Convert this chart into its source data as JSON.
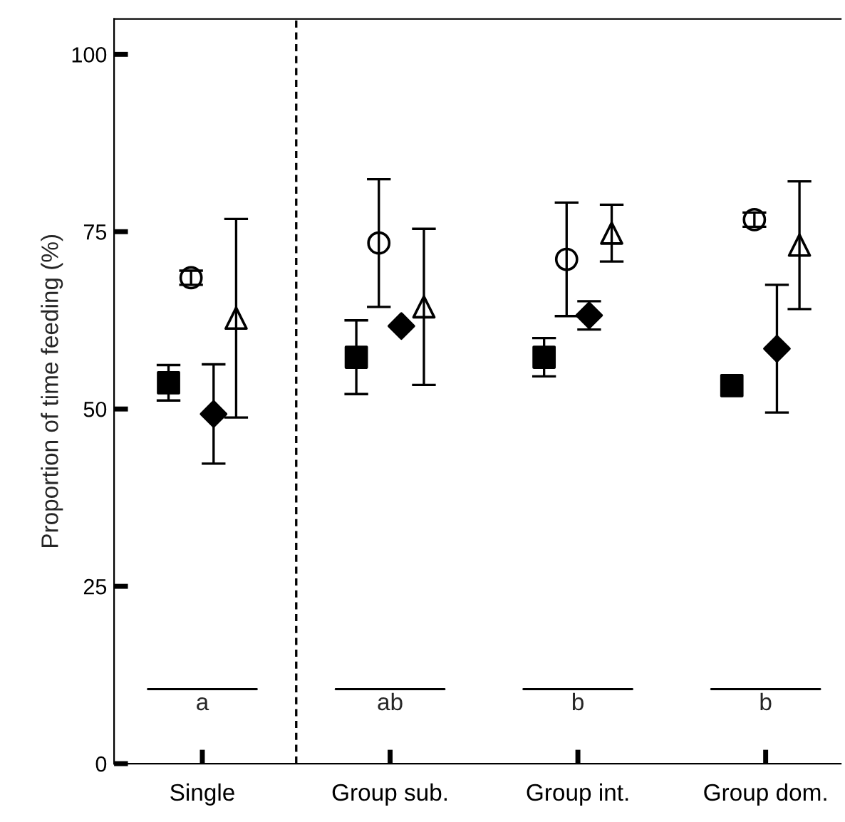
{
  "chart_data": {
    "type": "scatter",
    "ylabel": "Proportion of time feeding (%)",
    "categories": [
      "Single",
      "Group sub.",
      "Group int.",
      "Group dom."
    ],
    "series": [
      {
        "color": "#000000",
        "marker": "square",
        "values": [
          53.7,
          57.3,
          57.3,
          53.3
        ],
        "errors": [
          2.5,
          5.2,
          2.7,
          null
        ]
      },
      {
        "color": "#000000",
        "marker": "circle",
        "values": [
          68.5,
          73.4,
          71.1,
          76.7
        ],
        "errors": [
          1,
          9,
          8,
          1
        ]
      },
      {
        "color": "#000000",
        "marker": "diamond",
        "values": [
          49.3,
          61.7,
          63.2,
          58.5
        ],
        "errors": [
          7,
          null,
          2,
          9
        ]
      },
      {
        "color": "#000000",
        "marker": "triangle",
        "values": [
          62.8,
          64.4,
          74.8,
          73.1
        ],
        "errors": [
          14,
          11,
          4,
          9
        ]
      }
    ],
    "ylim": [
      0,
      105
    ],
    "yticks": [
      0,
      25,
      50,
      75,
      100
    ],
    "annotations": [
      "a",
      "ab",
      "b",
      "b"
    ],
    "grid": false,
    "legend": false
  }
}
